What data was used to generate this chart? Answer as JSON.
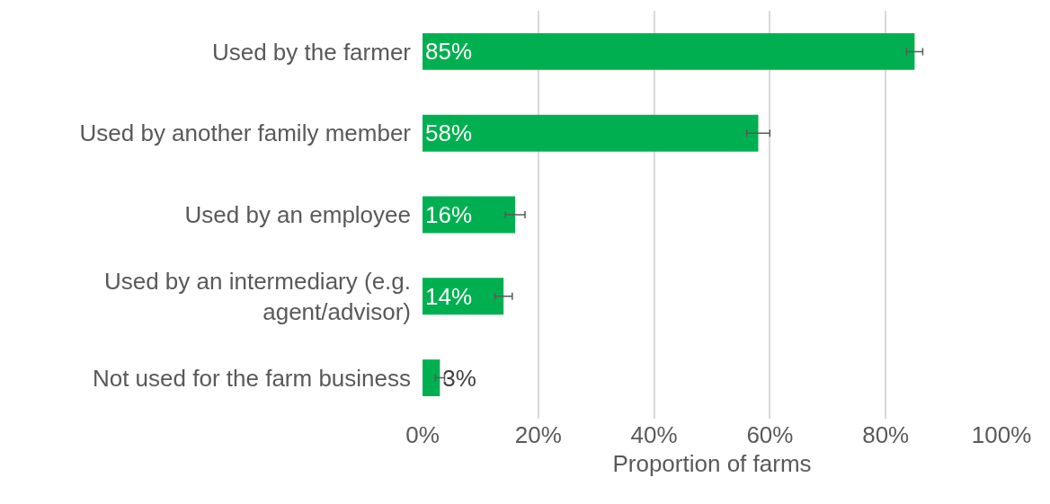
{
  "chart_data": {
    "type": "bar",
    "orientation": "horizontal",
    "xlabel": "Proportion of farms",
    "categories": [
      "Used by the farmer",
      "Used by another family member",
      "Used by an employee",
      "Used by an intermediary (e.g. agent/advisor)",
      "Not used for the farm business"
    ],
    "values": [
      85,
      58,
      16,
      14,
      3
    ],
    "value_labels": [
      "85%",
      "58%",
      "16%",
      "14%",
      "3%"
    ],
    "errors": [
      1.4,
      2,
      1.7,
      1.5,
      0.8
    ],
    "color": "#00b050",
    "xlim": [
      0,
      100
    ],
    "xticks": [
      {
        "value": 0,
        "label": "0%"
      },
      {
        "value": 20,
        "label": "20%"
      },
      {
        "value": 40,
        "label": "40%"
      },
      {
        "value": 60,
        "label": "60%"
      },
      {
        "value": 80,
        "label": "80%"
      },
      {
        "value": 100,
        "label": "100%"
      }
    ],
    "grid": "x",
    "legend": false
  }
}
